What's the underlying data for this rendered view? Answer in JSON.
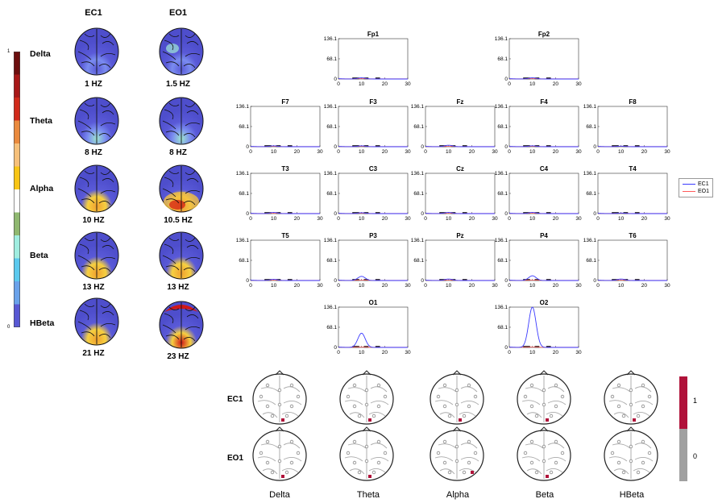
{
  "topomap_panel": {
    "columns": [
      "EC1",
      "EO1"
    ],
    "colorbar": {
      "max_label": "1",
      "min_label": "0",
      "bands": [
        "Delta",
        "Theta",
        "Alpha",
        "Beta",
        "HBeta"
      ],
      "colors": [
        "#6d0f0f",
        "#a81818",
        "#d12a1a",
        "#ea8a3d",
        "#f6c07a",
        "#f8c515",
        "#ffffff",
        "#8fb870",
        "#a0ede0",
        "#5bc9ee",
        "#6aa2ea",
        "#5858d4"
      ]
    },
    "rows": [
      {
        "band": "Delta",
        "ec1_freq": "1 HZ",
        "eo1_freq": "1.5 HZ"
      },
      {
        "band": "Theta",
        "ec1_freq": "8 HZ",
        "eo1_freq": "8 HZ"
      },
      {
        "band": "Alpha",
        "ec1_freq": "10 HZ",
        "eo1_freq": "10.5 HZ"
      },
      {
        "band": "Beta",
        "ec1_freq": "13 HZ",
        "eo1_freq": "13 HZ"
      },
      {
        "band": "HBeta",
        "ec1_freq": "21 HZ",
        "eo1_freq": "23 HZ"
      }
    ]
  },
  "chart_data": [
    {
      "type": "line",
      "description_panels": "Power spectra per electrode",
      "xlim": [
        0,
        30
      ],
      "ylim": [
        0,
        136.1
      ],
      "xticks": [
        "0",
        "10",
        "20",
        "30"
      ],
      "yticks": [
        "0",
        "68.1",
        "136.1"
      ],
      "legend": {
        "placement": "right",
        "entries": [
          "EC1",
          "EO1"
        ]
      },
      "series_colors": {
        "EC1": "#3a3aff",
        "EO1": "#ff5a5a"
      },
      "panels": [
        {
          "title": "Fp1",
          "ec1_peak": [
            10,
            4
          ]
        },
        {
          "title": "Fp2",
          "ec1_peak": [
            10,
            4
          ]
        },
        {
          "title": "F7",
          "ec1_peak": [
            10,
            3
          ]
        },
        {
          "title": "F3",
          "ec1_peak": [
            10,
            3
          ]
        },
        {
          "title": "Fz",
          "ec1_peak": [
            10,
            5
          ]
        },
        {
          "title": "F4",
          "ec1_peak": [
            10,
            3
          ]
        },
        {
          "title": "F8",
          "ec1_peak": [
            10,
            2
          ]
        },
        {
          "title": "T3",
          "ec1_peak": [
            10,
            4
          ]
        },
        {
          "title": "C3",
          "ec1_peak": [
            10,
            3
          ]
        },
        {
          "title": "Cz",
          "ec1_peak": [
            10,
            4
          ]
        },
        {
          "title": "C4",
          "ec1_peak": [
            10,
            4
          ]
        },
        {
          "title": "T4",
          "ec1_peak": [
            10,
            2
          ]
        },
        {
          "title": "T5",
          "ec1_peak": [
            10,
            4
          ]
        },
        {
          "title": "P3",
          "ec1_peak": [
            10,
            14
          ]
        },
        {
          "title": "Pz",
          "ec1_peak": [
            10,
            5
          ]
        },
        {
          "title": "P4",
          "ec1_peak": [
            10,
            16
          ]
        },
        {
          "title": "T6",
          "ec1_peak": [
            10,
            5
          ]
        },
        {
          "title": "O1",
          "ec1_peak": [
            10,
            48
          ]
        },
        {
          "title": "O2",
          "ec1_peak": [
            10,
            136
          ]
        }
      ]
    },
    {
      "type": "heatmap",
      "rows": [
        "EC1",
        "EO1"
      ],
      "columns": [
        "Delta",
        "Theta",
        "Alpha",
        "Beta",
        "HBeta"
      ],
      "colorbar": {
        "labels": [
          "1",
          "0"
        ],
        "colors": [
          "#b0123a",
          "#a0a0a0"
        ]
      }
    }
  ]
}
